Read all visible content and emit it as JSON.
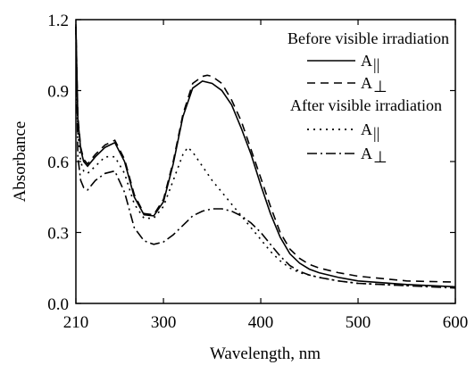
{
  "chart_data": {
    "type": "line",
    "xlabel": "Wavelength, nm",
    "ylabel": "Absorbance",
    "xlim": [
      210,
      600
    ],
    "ylim": [
      0.0,
      1.2
    ],
    "x_ticks": [
      {
        "value": 210,
        "label": "210"
      },
      {
        "value": 300,
        "label": "300"
      },
      {
        "value": 400,
        "label": "400"
      },
      {
        "value": 500,
        "label": "500"
      },
      {
        "value": 600,
        "label": "600"
      }
    ],
    "y_ticks": [
      {
        "value": 0.0,
        "label": "0.0"
      },
      {
        "value": 0.3,
        "label": "0.3"
      },
      {
        "value": 0.6,
        "label": "0.6"
      },
      {
        "value": 0.9,
        "label": "0.9"
      },
      {
        "value": 1.2,
        "label": "1.2"
      }
    ],
    "legend_groups": [
      {
        "title": "Before visible irradiation",
        "entries": [
          0,
          1
        ]
      },
      {
        "title": "After visible irradiation",
        "entries": [
          2,
          3
        ]
      }
    ],
    "legend_placement": "top-right",
    "series": [
      {
        "name": "A||",
        "label_main": "A",
        "label_sub": "||",
        "style": "solid",
        "x": [
          210,
          212,
          215,
          218,
          222,
          230,
          240,
          250,
          260,
          270,
          280,
          290,
          300,
          310,
          320,
          330,
          340,
          350,
          360,
          370,
          380,
          390,
          400,
          410,
          420,
          430,
          440,
          450,
          460,
          480,
          500,
          550,
          600
        ],
        "y": [
          1.18,
          0.78,
          0.65,
          0.6,
          0.58,
          0.62,
          0.66,
          0.68,
          0.6,
          0.45,
          0.375,
          0.37,
          0.43,
          0.59,
          0.79,
          0.91,
          0.94,
          0.93,
          0.9,
          0.84,
          0.74,
          0.63,
          0.5,
          0.38,
          0.28,
          0.21,
          0.17,
          0.145,
          0.13,
          0.11,
          0.095,
          0.08,
          0.07
        ]
      },
      {
        "name": "A⊥",
        "label_main": "A",
        "label_sub": "⊥",
        "style": "dashed",
        "x": [
          210,
          212,
          215,
          218,
          222,
          230,
          240,
          250,
          260,
          270,
          280,
          290,
          300,
          310,
          320,
          330,
          340,
          345,
          350,
          360,
          370,
          380,
          390,
          400,
          410,
          420,
          430,
          440,
          450,
          460,
          480,
          500,
          550,
          600
        ],
        "y": [
          1.17,
          0.79,
          0.66,
          0.61,
          0.59,
          0.63,
          0.67,
          0.69,
          0.61,
          0.46,
          0.38,
          0.375,
          0.44,
          0.6,
          0.8,
          0.93,
          0.96,
          0.965,
          0.96,
          0.93,
          0.86,
          0.77,
          0.65,
          0.53,
          0.41,
          0.3,
          0.23,
          0.19,
          0.165,
          0.15,
          0.13,
          0.115,
          0.095,
          0.09
        ]
      },
      {
        "name": "A||",
        "label_main": "A",
        "label_sub": "||",
        "style": "dotted",
        "x": [
          210,
          212,
          215,
          218,
          222,
          230,
          240,
          250,
          260,
          270,
          280,
          290,
          300,
          310,
          320,
          325,
          330,
          340,
          350,
          360,
          370,
          380,
          390,
          400,
          410,
          420,
          430,
          440,
          450,
          460,
          480,
          500,
          550,
          600
        ],
        "y": [
          1.17,
          0.72,
          0.6,
          0.56,
          0.55,
          0.58,
          0.62,
          0.62,
          0.55,
          0.42,
          0.36,
          0.36,
          0.41,
          0.52,
          0.63,
          0.66,
          0.64,
          0.58,
          0.52,
          0.47,
          0.42,
          0.37,
          0.32,
          0.27,
          0.22,
          0.18,
          0.15,
          0.13,
          0.12,
          0.11,
          0.095,
          0.085,
          0.075,
          0.07
        ]
      },
      {
        "name": "A⊥",
        "label_main": "A",
        "label_sub": "⊥",
        "style": "dashdot",
        "x": [
          210,
          212,
          215,
          218,
          222,
          230,
          240,
          250,
          260,
          270,
          280,
          290,
          300,
          310,
          320,
          330,
          340,
          350,
          360,
          370,
          380,
          390,
          400,
          410,
          420,
          430,
          440,
          450,
          460,
          480,
          500,
          550,
          600
        ],
        "y": [
          1.16,
          0.62,
          0.52,
          0.49,
          0.48,
          0.52,
          0.55,
          0.56,
          0.47,
          0.32,
          0.265,
          0.25,
          0.26,
          0.29,
          0.33,
          0.37,
          0.39,
          0.4,
          0.4,
          0.39,
          0.37,
          0.34,
          0.3,
          0.25,
          0.2,
          0.16,
          0.135,
          0.12,
          0.11,
          0.095,
          0.085,
          0.075,
          0.065
        ]
      }
    ]
  }
}
